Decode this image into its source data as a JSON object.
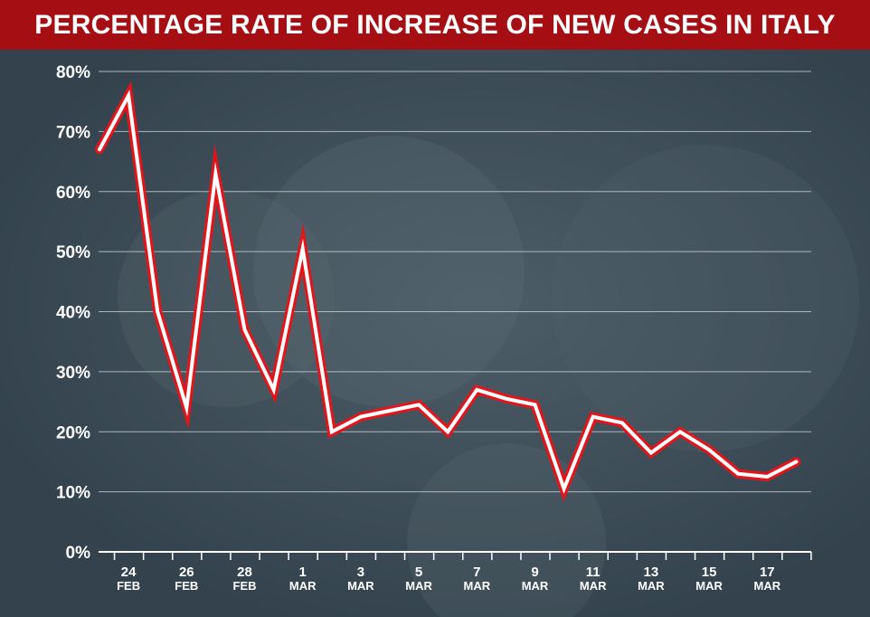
{
  "chart_data": {
    "type": "line",
    "title": "PERCENTAGE RATE OF INCREASE OF NEW CASES IN ITALY",
    "xlabel": "",
    "ylabel": "",
    "ylim": [
      0,
      80
    ],
    "y_ticks": [
      0,
      10,
      20,
      30,
      40,
      50,
      60,
      70,
      80
    ],
    "y_tick_labels": [
      "0%",
      "10%",
      "20%",
      "30%",
      "40%",
      "50%",
      "60%",
      "70%",
      "80%"
    ],
    "x_labels": [
      {
        "day": "24",
        "month": "FEB",
        "index": 1
      },
      {
        "day": "26",
        "month": "FEB",
        "index": 3
      },
      {
        "day": "28",
        "month": "FEB",
        "index": 5
      },
      {
        "day": "1",
        "month": "MAR",
        "index": 7
      },
      {
        "day": "3",
        "month": "MAR",
        "index": 9
      },
      {
        "day": "5",
        "month": "MAR",
        "index": 11
      },
      {
        "day": "7",
        "month": "MAR",
        "index": 13
      },
      {
        "day": "9",
        "month": "MAR",
        "index": 15
      },
      {
        "day": "11",
        "month": "MAR",
        "index": 17
      },
      {
        "day": "13",
        "month": "MAR",
        "index": 19
      },
      {
        "day": "15",
        "month": "MAR",
        "index": 21
      },
      {
        "day": "17",
        "month": "MAR",
        "index": 23
      }
    ],
    "series": [
      {
        "name": "Percentage rate of increase",
        "values": [
          67,
          76,
          40,
          24,
          63,
          37,
          27,
          50.5,
          20,
          22.5,
          23.5,
          24.5,
          20,
          27,
          25.5,
          24.5,
          10.5,
          22.5,
          21.5,
          16.5,
          20,
          17,
          13,
          12.5,
          15
        ]
      }
    ],
    "grid": true,
    "colors": {
      "background": "#3a4a55",
      "title_bar": "#a50f14",
      "line_fill": "#ffffff",
      "line_outline": "#e3151b",
      "grid": "#c9d2d8",
      "text": "#ffffff"
    }
  }
}
